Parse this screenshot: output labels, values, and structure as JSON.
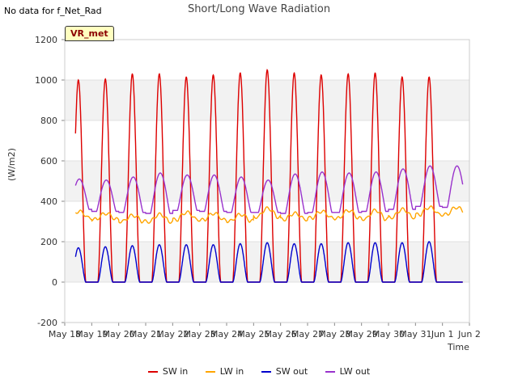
{
  "note": "No data for f_Net_Rad",
  "site_badge": "VR_met",
  "chart_data": {
    "type": "line",
    "title": "Short/Long Wave Radiation",
    "xlabel": "Time",
    "ylabel": "(W/m2)",
    "ylim": [
      -200,
      1200
    ],
    "yticks": [
      -200,
      0,
      200,
      400,
      600,
      800,
      1000,
      1200
    ],
    "xlim": [
      0,
      15
    ],
    "xticks": [
      0,
      1,
      2,
      3,
      4,
      5,
      6,
      7,
      8,
      9,
      10,
      11,
      12,
      13,
      14,
      15
    ],
    "xtick_labels": [
      "May 18",
      "May 19",
      "May 20",
      "May 21",
      "May 22",
      "May 23",
      "May 24",
      "May 25",
      "May 26",
      "May 27",
      "May 28",
      "May 29",
      "May 30",
      "May 31",
      "Jun 1",
      "Jun 2"
    ],
    "grid": true,
    "background_bands": "alternating grey bands",
    "legend_position": "bottom",
    "x_days": [
      0.5,
      1.5,
      2.5,
      3.5,
      4.5,
      5.5,
      6.5,
      7.5,
      8.5,
      9.5,
      10.5,
      11.5,
      12.5,
      13.5,
      14.5
    ],
    "series": [
      {
        "name": "SW in",
        "color": "#dd0000",
        "daily_min": [
          0,
          0,
          0,
          0,
          0,
          0,
          0,
          0,
          0,
          0,
          0,
          0,
          0,
          0,
          0
        ],
        "daily_max": [
          1000,
          1005,
          1030,
          1030,
          1015,
          1025,
          1035,
          1050,
          1035,
          1025,
          1030,
          1035,
          1015,
          1015,
          0
        ]
      },
      {
        "name": "LW in",
        "color": "#ffa500",
        "daily_min": [
          300,
          295,
          285,
          280,
          290,
          290,
          285,
          300,
          295,
          300,
          295,
          290,
          300,
          315,
          315
        ],
        "daily_max": [
          350,
          340,
          330,
          335,
          345,
          340,
          335,
          365,
          340,
          350,
          355,
          355,
          360,
          370,
          370
        ]
      },
      {
        "name": "SW out",
        "color": "#0000cc",
        "daily_min": [
          0,
          0,
          0,
          0,
          0,
          0,
          0,
          0,
          0,
          0,
          0,
          0,
          0,
          0,
          0
        ],
        "daily_max": [
          170,
          175,
          180,
          185,
          185,
          185,
          190,
          195,
          190,
          190,
          195,
          195,
          195,
          200,
          0
        ]
      },
      {
        "name": "LW out",
        "color": "#9932cc",
        "daily_min": [
          360,
          350,
          345,
          340,
          355,
          350,
          345,
          345,
          340,
          345,
          345,
          350,
          360,
          375,
          370
        ],
        "daily_max": [
          510,
          505,
          520,
          540,
          530,
          530,
          520,
          505,
          535,
          545,
          540,
          545,
          560,
          575,
          575
        ]
      }
    ]
  }
}
